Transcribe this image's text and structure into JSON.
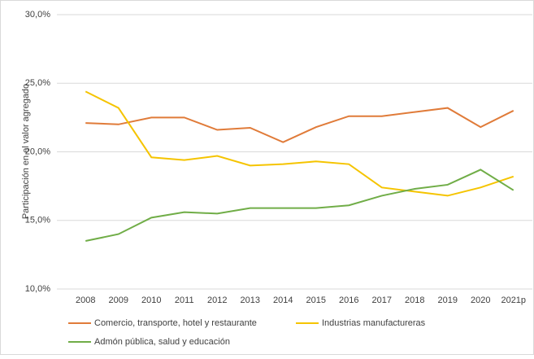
{
  "chart_data": {
    "type": "line",
    "y_label": "Participación en el valor agregado",
    "categories": [
      "2008",
      "2009",
      "2010",
      "2011",
      "2012",
      "2013",
      "2014",
      "2015",
      "2016",
      "2017",
      "2018",
      "2019",
      "2020",
      "2021p"
    ],
    "series": [
      {
        "name": "Comercio, transporte, hotel y restaurante",
        "color": "#e07b39",
        "values": [
          22.1,
          22.0,
          22.5,
          22.5,
          21.6,
          21.75,
          20.7,
          21.8,
          22.6,
          22.6,
          22.9,
          23.2,
          21.8,
          23.0
        ]
      },
      {
        "name": "Industrias manufactureras",
        "color": "#f5c400",
        "values": [
          24.4,
          23.2,
          19.6,
          19.4,
          19.7,
          19.0,
          19.1,
          19.3,
          19.1,
          17.4,
          17.1,
          16.8,
          17.4,
          18.2
        ]
      },
      {
        "name": "Admón pública, salud y educación",
        "color": "#70ad47",
        "values": [
          13.5,
          14.0,
          15.2,
          15.6,
          15.5,
          15.9,
          15.9,
          15.9,
          16.1,
          16.8,
          17.3,
          17.6,
          18.7,
          17.2
        ]
      }
    ],
    "ylim": [
      10,
      30
    ],
    "yticks": [
      {
        "value": 10,
        "label": "10,0%"
      },
      {
        "value": 15,
        "label": "15,0%"
      },
      {
        "value": 20,
        "label": "20,0%"
      },
      {
        "value": 25,
        "label": "25,0%"
      },
      {
        "value": 30,
        "label": "30,0%"
      }
    ],
    "grid": true,
    "legend": "bottom"
  }
}
